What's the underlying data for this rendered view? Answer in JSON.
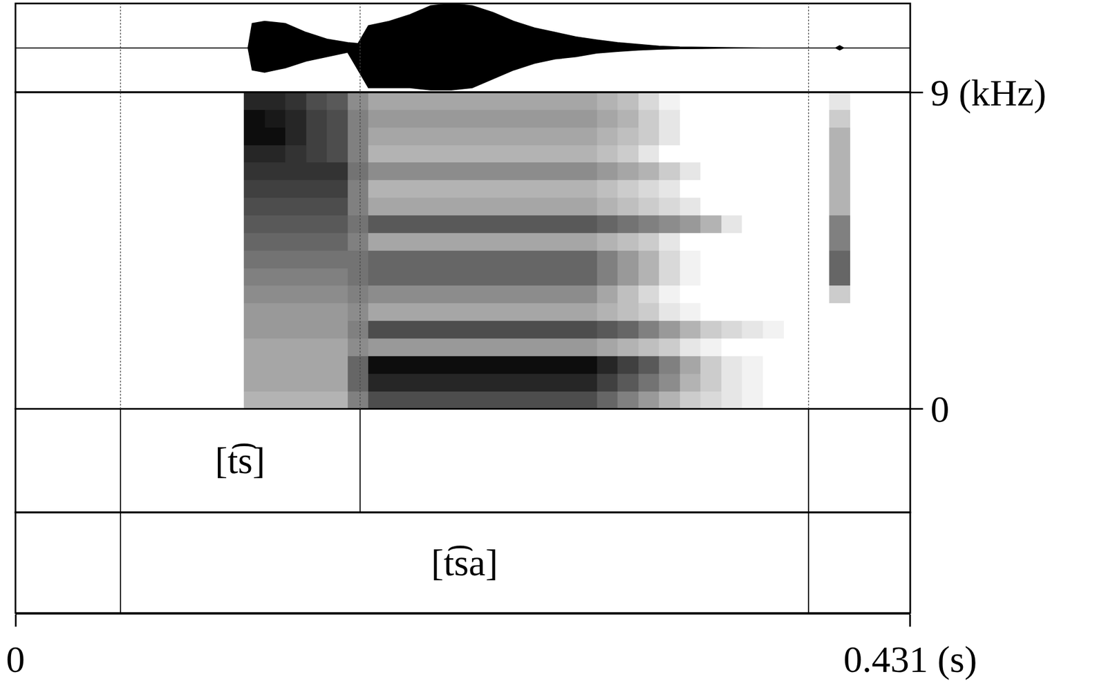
{
  "chart_data": {
    "type": "spectrogram",
    "grid": false,
    "xlim": [
      0,
      0.431
    ],
    "xticks": [
      0,
      {
        "value": 0.431,
        "label": "0.431 (s)"
      }
    ],
    "waveform": {
      "ylim": [
        -1,
        1
      ],
      "time": [
        0,
        0.112,
        0.114,
        0.12,
        0.13,
        0.14,
        0.15,
        0.16,
        0.165,
        0.17,
        0.18,
        0.19,
        0.2,
        0.21,
        0.22,
        0.23,
        0.24,
        0.25,
        0.26,
        0.27,
        0.28,
        0.29,
        0.3,
        0.31,
        0.32,
        0.34,
        0.36,
        0.395,
        0.397,
        0.399,
        0.431
      ],
      "upper": [
        0,
        0,
        0.55,
        0.6,
        0.55,
        0.35,
        0.2,
        0.12,
        0.1,
        0.5,
        0.6,
        0.75,
        0.95,
        1,
        0.95,
        0.8,
        0.6,
        0.45,
        0.35,
        0.25,
        0.18,
        0.12,
        0.08,
        0.04,
        0.02,
        0.01,
        0,
        0,
        0.05,
        0,
        0
      ],
      "lower": [
        0,
        0,
        -0.5,
        -0.55,
        -0.45,
        -0.3,
        -0.2,
        -0.1,
        -0.5,
        -0.9,
        -0.9,
        -0.9,
        -0.95,
        -0.95,
        -0.9,
        -0.7,
        -0.5,
        -0.35,
        -0.25,
        -0.2,
        -0.12,
        -0.08,
        -0.05,
        -0.03,
        -0.02,
        -0.01,
        0,
        0,
        -0.05,
        0,
        0
      ]
    },
    "spectrogram": {
      "ylim": [
        0,
        9
      ],
      "yticks": [
        0,
        {
          "value": 9,
          "label": "9 (kHz)"
        }
      ],
      "zlim": [
        0,
        1
      ],
      "color": "#000000",
      "time_bins": [
        0.115,
        0.125,
        0.135,
        0.145,
        0.155,
        0.165,
        0.175,
        0.185,
        0.195,
        0.205,
        0.215,
        0.225,
        0.235,
        0.245,
        0.255,
        0.265,
        0.275,
        0.285,
        0.295,
        0.305,
        0.315,
        0.325,
        0.335,
        0.345,
        0.355,
        0.365,
        0.375,
        0.387,
        0.397,
        0.407
      ],
      "frequency_bins": [
        0.25,
        0.75,
        1.25,
        1.75,
        2.25,
        2.75,
        3.25,
        3.75,
        4.25,
        4.75,
        5.25,
        5.75,
        6.25,
        6.75,
        7.25,
        7.75,
        8.25,
        8.75
      ],
      "cells": [
        [
          0.3,
          0.3,
          0.3,
          0.3,
          0.3,
          0.5,
          0.7,
          0.7,
          0.7,
          0.7,
          0.7,
          0.7,
          0.7,
          0.7,
          0.7,
          0.7,
          0.7,
          0.6,
          0.5,
          0.4,
          0.3,
          0.2,
          0.15,
          0.1,
          0.05,
          0,
          0,
          0,
          0,
          0
        ],
        [
          0.35,
          0.35,
          0.35,
          0.35,
          0.35,
          0.6,
          0.85,
          0.85,
          0.85,
          0.85,
          0.85,
          0.85,
          0.85,
          0.85,
          0.85,
          0.85,
          0.85,
          0.75,
          0.65,
          0.55,
          0.45,
          0.3,
          0.2,
          0.1,
          0.05,
          0,
          0,
          0,
          0,
          0
        ],
        [
          0.35,
          0.35,
          0.35,
          0.35,
          0.35,
          0.6,
          0.95,
          0.95,
          0.95,
          0.95,
          0.95,
          0.95,
          0.95,
          0.95,
          0.95,
          0.95,
          0.95,
          0.85,
          0.75,
          0.65,
          0.5,
          0.35,
          0.2,
          0.1,
          0.05,
          0,
          0,
          0,
          0,
          0
        ],
        [
          0.35,
          0.35,
          0.35,
          0.35,
          0.35,
          0.45,
          0.4,
          0.4,
          0.4,
          0.4,
          0.4,
          0.4,
          0.4,
          0.4,
          0.4,
          0.4,
          0.4,
          0.35,
          0.3,
          0.25,
          0.2,
          0.1,
          0.05,
          0,
          0,
          0,
          0,
          0,
          0,
          0
        ],
        [
          0.4,
          0.4,
          0.4,
          0.4,
          0.4,
          0.5,
          0.7,
          0.7,
          0.7,
          0.7,
          0.7,
          0.7,
          0.7,
          0.7,
          0.7,
          0.7,
          0.7,
          0.65,
          0.6,
          0.5,
          0.4,
          0.3,
          0.2,
          0.15,
          0.1,
          0.05,
          0,
          0,
          0,
          0
        ],
        [
          0.4,
          0.4,
          0.4,
          0.4,
          0.4,
          0.45,
          0.35,
          0.35,
          0.35,
          0.35,
          0.35,
          0.35,
          0.35,
          0.35,
          0.35,
          0.35,
          0.35,
          0.3,
          0.25,
          0.2,
          0.1,
          0.05,
          0,
          0,
          0,
          0,
          0,
          0,
          0,
          0
        ],
        [
          0.45,
          0.45,
          0.45,
          0.45,
          0.45,
          0.5,
          0.45,
          0.45,
          0.45,
          0.45,
          0.45,
          0.45,
          0.45,
          0.45,
          0.45,
          0.45,
          0.45,
          0.35,
          0.25,
          0.15,
          0.05,
          0,
          0,
          0,
          0,
          0,
          0,
          0,
          0.2,
          0
        ],
        [
          0.5,
          0.5,
          0.5,
          0.5,
          0.5,
          0.55,
          0.6,
          0.6,
          0.6,
          0.6,
          0.6,
          0.6,
          0.6,
          0.6,
          0.6,
          0.6,
          0.6,
          0.5,
          0.4,
          0.3,
          0.15,
          0.05,
          0,
          0,
          0,
          0,
          0,
          0,
          0.6,
          0
        ],
        [
          0.55,
          0.55,
          0.55,
          0.55,
          0.55,
          0.55,
          0.6,
          0.6,
          0.6,
          0.6,
          0.6,
          0.6,
          0.6,
          0.6,
          0.6,
          0.6,
          0.6,
          0.5,
          0.4,
          0.3,
          0.15,
          0.05,
          0,
          0,
          0,
          0,
          0,
          0,
          0.6,
          0
        ],
        [
          0.6,
          0.6,
          0.6,
          0.6,
          0.6,
          0.5,
          0.35,
          0.35,
          0.35,
          0.35,
          0.35,
          0.35,
          0.35,
          0.35,
          0.35,
          0.35,
          0.35,
          0.3,
          0.25,
          0.2,
          0.1,
          0,
          0,
          0,
          0,
          0,
          0,
          0,
          0.5,
          0
        ],
        [
          0.65,
          0.65,
          0.65,
          0.65,
          0.65,
          0.55,
          0.65,
          0.65,
          0.65,
          0.65,
          0.65,
          0.65,
          0.65,
          0.65,
          0.65,
          0.65,
          0.65,
          0.6,
          0.55,
          0.5,
          0.45,
          0.4,
          0.3,
          0.1,
          0,
          0,
          0,
          0,
          0.5,
          0
        ],
        [
          0.7,
          0.7,
          0.7,
          0.7,
          0.7,
          0.5,
          0.35,
          0.35,
          0.35,
          0.35,
          0.35,
          0.35,
          0.35,
          0.35,
          0.35,
          0.35,
          0.35,
          0.3,
          0.25,
          0.2,
          0.15,
          0.1,
          0,
          0,
          0,
          0,
          0,
          0,
          0.3,
          0
        ],
        [
          0.75,
          0.75,
          0.75,
          0.75,
          0.75,
          0.5,
          0.3,
          0.3,
          0.3,
          0.3,
          0.3,
          0.3,
          0.3,
          0.3,
          0.3,
          0.3,
          0.3,
          0.25,
          0.2,
          0.15,
          0.1,
          0,
          0,
          0,
          0,
          0,
          0,
          0,
          0.3,
          0
        ],
        [
          0.8,
          0.8,
          0.8,
          0.8,
          0.8,
          0.55,
          0.45,
          0.45,
          0.45,
          0.45,
          0.45,
          0.45,
          0.45,
          0.45,
          0.45,
          0.45,
          0.45,
          0.4,
          0.35,
          0.3,
          0.2,
          0.1,
          0,
          0,
          0,
          0,
          0,
          0,
          0.3,
          0
        ],
        [
          0.85,
          0.85,
          0.8,
          0.75,
          0.7,
          0.5,
          0.3,
          0.3,
          0.3,
          0.3,
          0.3,
          0.3,
          0.3,
          0.3,
          0.3,
          0.3,
          0.3,
          0.25,
          0.2,
          0.1,
          0,
          0,
          0,
          0,
          0,
          0,
          0,
          0,
          0.3,
          0
        ],
        [
          0.95,
          0.95,
          0.85,
          0.75,
          0.7,
          0.5,
          0.35,
          0.35,
          0.35,
          0.35,
          0.35,
          0.35,
          0.35,
          0.35,
          0.35,
          0.35,
          0.35,
          0.3,
          0.25,
          0.2,
          0.1,
          0,
          0,
          0,
          0,
          0,
          0,
          0,
          0.3,
          0
        ],
        [
          0.95,
          0.9,
          0.85,
          0.75,
          0.7,
          0.5,
          0.4,
          0.4,
          0.4,
          0.4,
          0.4,
          0.4,
          0.4,
          0.4,
          0.4,
          0.4,
          0.4,
          0.35,
          0.3,
          0.2,
          0.1,
          0,
          0,
          0,
          0,
          0,
          0,
          0,
          0.2,
          0
        ],
        [
          0.85,
          0.85,
          0.8,
          0.7,
          0.65,
          0.45,
          0.35,
          0.35,
          0.35,
          0.35,
          0.35,
          0.35,
          0.35,
          0.35,
          0.35,
          0.35,
          0.35,
          0.3,
          0.25,
          0.15,
          0.05,
          0,
          0,
          0,
          0,
          0,
          0,
          0,
          0.1,
          0
        ]
      ]
    },
    "tiers": [
      {
        "boundaries": [
          0.0506,
          0.166,
          0.382
        ],
        "intervals": [
          {
            "start": 0.0506,
            "end": 0.166,
            "label": "[t͡s]"
          }
        ]
      },
      {
        "boundaries": [
          0.0506,
          0.382
        ],
        "intervals": [
          {
            "start": 0.0506,
            "end": 0.382,
            "label": "[t͡sa]"
          }
        ]
      }
    ]
  }
}
